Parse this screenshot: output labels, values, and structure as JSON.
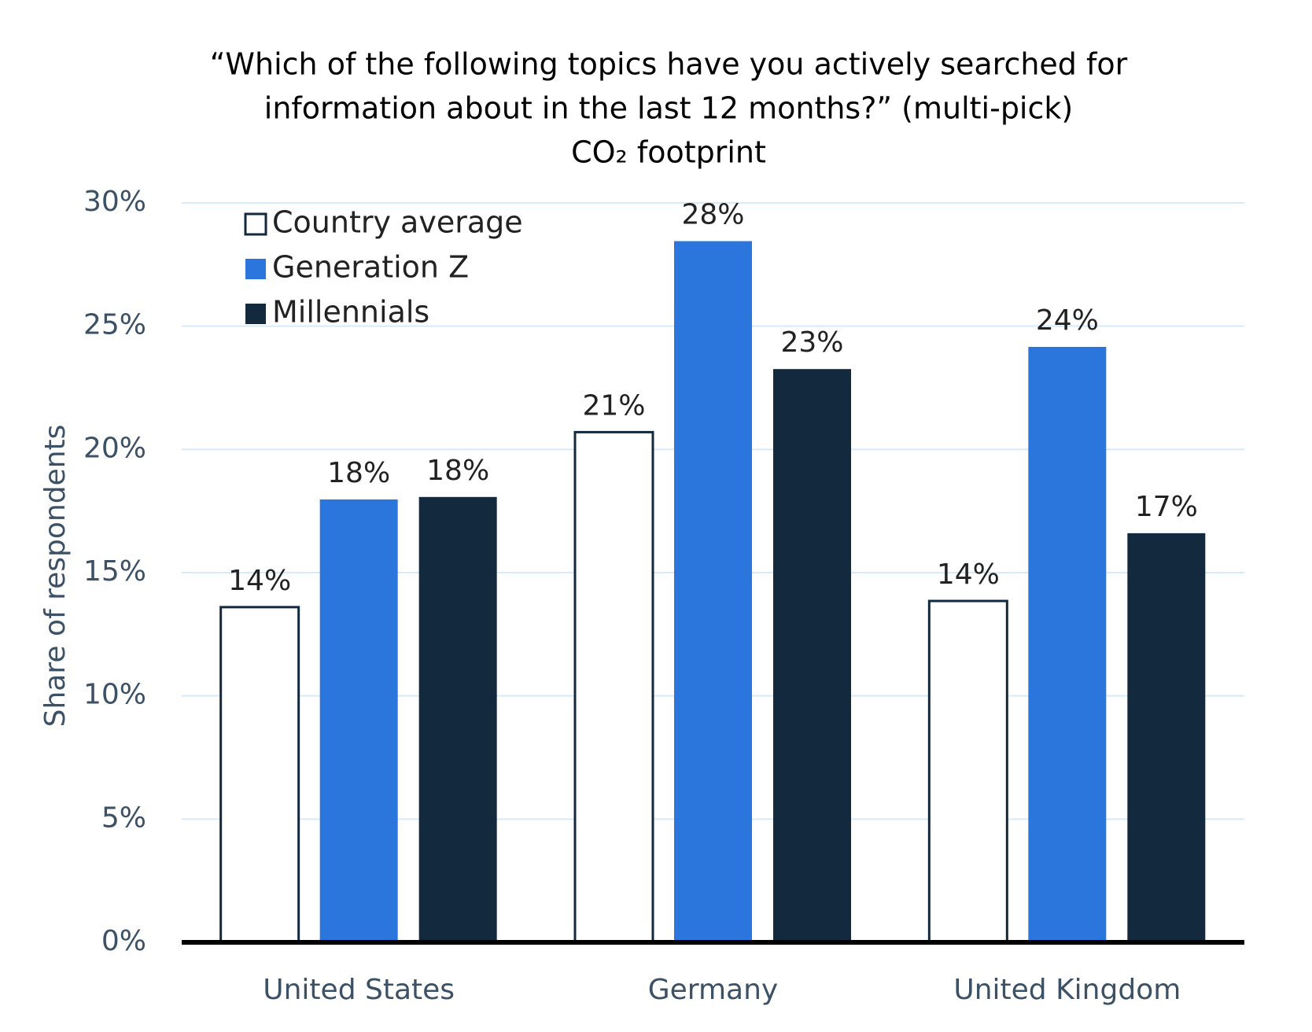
{
  "chart_data": {
    "type": "bar",
    "title": [
      "“Which of the following topics have you actively searched for",
      "information about in the last 12 months?” (multi-pick)",
      "CO₂ footprint"
    ],
    "y_label": "Share of respondents",
    "categories": [
      "United States",
      "Germany",
      "United Kingdom"
    ],
    "series": [
      {
        "name": "Country average",
        "color": "#ffffff",
        "stroke": "#13293d",
        "values": [
          13.6,
          20.7,
          13.85
        ],
        "value_labels": [
          "14%",
          "21%",
          "14%"
        ]
      },
      {
        "name": "Generation Z",
        "color": "#2a76dd",
        "values": [
          17.97,
          28.45,
          24.16
        ],
        "value_labels": [
          "18%",
          "28%",
          "24%"
        ]
      },
      {
        "name": "Millennials",
        "color": "#13293d",
        "values": [
          18.07,
          23.26,
          16.6
        ],
        "value_labels": [
          "18%",
          "23%",
          "17%"
        ]
      }
    ],
    "ylim": [
      0,
      30
    ],
    "yticks": [
      {
        "value": 0,
        "label": "0%"
      },
      {
        "value": 5,
        "label": "5%"
      },
      {
        "value": 10,
        "label": "10%"
      },
      {
        "value": 15,
        "label": "15%"
      },
      {
        "value": 20,
        "label": "20%"
      },
      {
        "value": 25,
        "label": "25%"
      },
      {
        "value": 30,
        "label": "30%"
      }
    ],
    "grid": true,
    "legend": "top-left"
  }
}
